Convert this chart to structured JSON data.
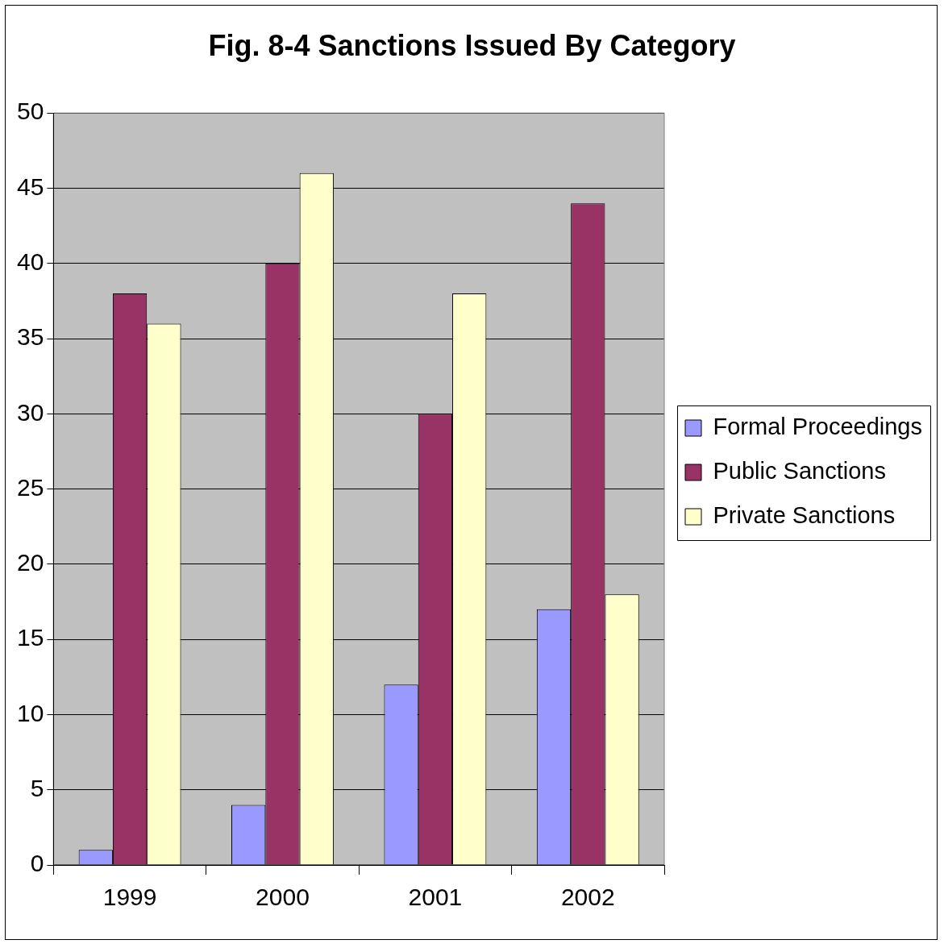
{
  "chart_data": {
    "type": "bar",
    "title": "Fig. 8-4 Sanctions Issued By Category",
    "categories": [
      "1999",
      "2000",
      "2001",
      "2002"
    ],
    "series": [
      {
        "name": "Formal Proceedings",
        "color": "#9999ff",
        "values": [
          1,
          4,
          12,
          17
        ]
      },
      {
        "name": "Public Sanctions",
        "color": "#993366",
        "values": [
          38,
          40,
          30,
          44
        ]
      },
      {
        "name": "Private Sanctions",
        "color": "#ffffcc",
        "values": [
          36,
          46,
          38,
          18
        ]
      }
    ],
    "ylim": [
      0,
      50
    ],
    "yticks": [
      0,
      5,
      10,
      15,
      20,
      25,
      30,
      35,
      40,
      45,
      50
    ],
    "grid": "y",
    "legend": "right"
  }
}
